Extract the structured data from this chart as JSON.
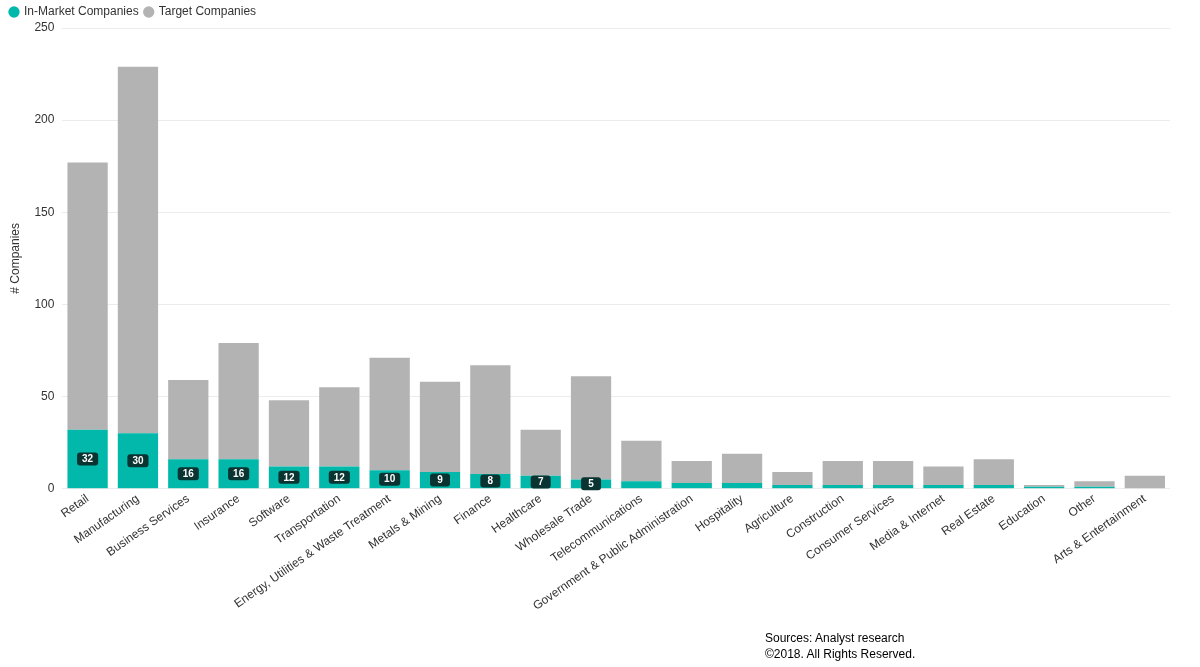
{
  "chart_data": {
    "type": "bar",
    "stacked": true,
    "ylabel": "# Companies",
    "categories": [
      "Retail",
      "Manufacturing",
      "Business Services",
      "Insurance",
      "Software",
      "Transportation",
      "Energy, Utilities & Waste Treatment",
      "Metals & Mining",
      "Finance",
      "Healthcare",
      "Wholesale Trade",
      "Telecommunications",
      "Government & Public Administration",
      "Hospitality",
      "Agriculture",
      "Construction",
      "Consumer Services",
      "Media & Internet",
      "Real Estate",
      "Education",
      "Other",
      "Arts & Entertainment"
    ],
    "series": [
      {
        "name": "In-Market Companies",
        "color": "#01b8aa",
        "values": [
          32,
          30,
          16,
          16,
          12,
          12,
          10,
          9,
          8,
          7,
          5,
          4,
          3,
          3,
          2,
          2,
          2,
          2,
          2,
          1,
          1,
          0
        ],
        "value_labels": [
          "32",
          "30",
          "16",
          "16",
          "12",
          "12",
          "10",
          "9",
          "8",
          "7",
          "5",
          null,
          null,
          null,
          null,
          null,
          null,
          null,
          null,
          null,
          null,
          null
        ]
      },
      {
        "name": "Target Companies",
        "color": "#b3b3b3",
        "values": [
          145,
          199,
          43,
          63,
          36,
          43,
          61,
          49,
          59,
          25,
          56,
          22,
          12,
          16,
          7,
          13,
          13,
          10,
          14,
          1,
          3,
          7
        ]
      }
    ],
    "ylim": [
      0,
      250
    ],
    "yticks": [
      0,
      50,
      100,
      150,
      200,
      250
    ],
    "grid": "y",
    "legend": "top left",
    "annotations": [
      "Sources: Analyst research",
      "©2018. All Rights Reserved."
    ]
  }
}
